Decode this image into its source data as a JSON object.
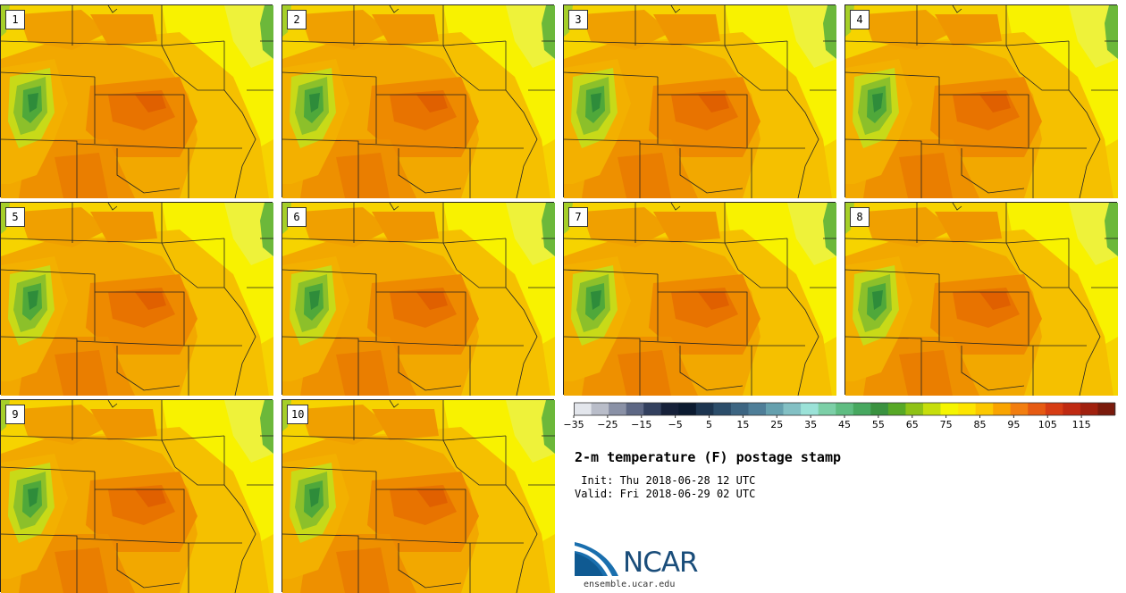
{
  "panels": [
    {
      "label": "1"
    },
    {
      "label": "2"
    },
    {
      "label": "3"
    },
    {
      "label": "4"
    },
    {
      "label": "5"
    },
    {
      "label": "6"
    },
    {
      "label": "7"
    },
    {
      "label": "8"
    },
    {
      "label": "9"
    },
    {
      "label": "10"
    }
  ],
  "colorbar": {
    "min": -35,
    "max": 120,
    "step": 5,
    "tick_labels": [
      "−35",
      "−25",
      "−15",
      "−5",
      "5",
      "15",
      "25",
      "35",
      "45",
      "55",
      "65",
      "75",
      "85",
      "95",
      "105",
      "115"
    ],
    "tick_values": [
      -35,
      -25,
      -15,
      -5,
      5,
      15,
      25,
      35,
      45,
      55,
      65,
      75,
      85,
      95,
      105,
      115
    ],
    "colors": [
      "#e3e6ec",
      "#b9bdc9",
      "#8a91a6",
      "#5d6784",
      "#33405e",
      "#16213a",
      "#0b1a30",
      "#1d3550",
      "#2c4d6a",
      "#3d6582",
      "#4f7e98",
      "#65a0ae",
      "#83c0c4",
      "#9be2d8",
      "#7ccfa7",
      "#5fbd82",
      "#47a860",
      "#3a9240",
      "#57a826",
      "#8fc216",
      "#c6de0c",
      "#f5f500",
      "#fde500",
      "#fcc800",
      "#f9a400",
      "#f27e10",
      "#e65a12",
      "#d63c14",
      "#bf2a12",
      "#a0200e",
      "#7a1a0c"
    ]
  },
  "title": "2-m temperature (F) postage stamp",
  "init_line": " Init: Thu 2018-06-28 12 UTC",
  "valid_line": "Valid: Fri 2018-06-29 02 UTC",
  "logo": {
    "text": "NCAR",
    "site": "ensemble.ucar.edu"
  }
}
